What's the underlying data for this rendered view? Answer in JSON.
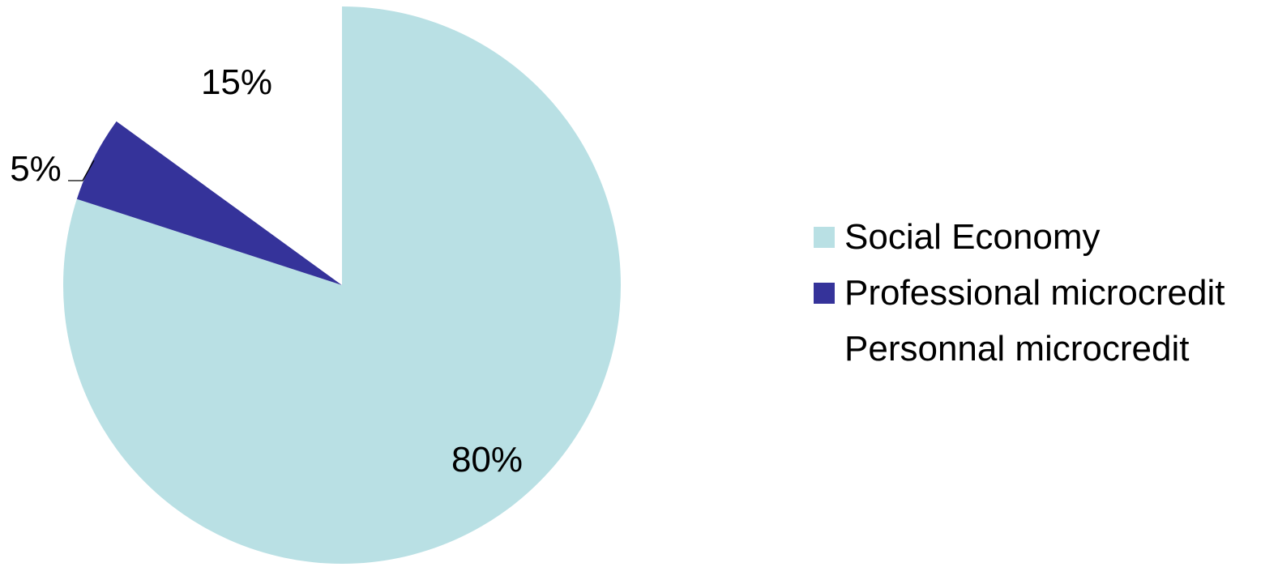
{
  "chart_data": {
    "type": "pie",
    "start_angle_deg": 0,
    "direction": "clockwise",
    "slices": [
      {
        "name": "Social Economy",
        "value": 80,
        "label": "80%",
        "color": "#b9e0e4"
      },
      {
        "name": "Professional microcredit",
        "value": 5,
        "label": "5%",
        "color": "#35339a"
      },
      {
        "name": "Personnal microcredit",
        "value": 15,
        "label": "15%",
        "color": "#ffffff"
      }
    ],
    "legend_position": "right"
  }
}
